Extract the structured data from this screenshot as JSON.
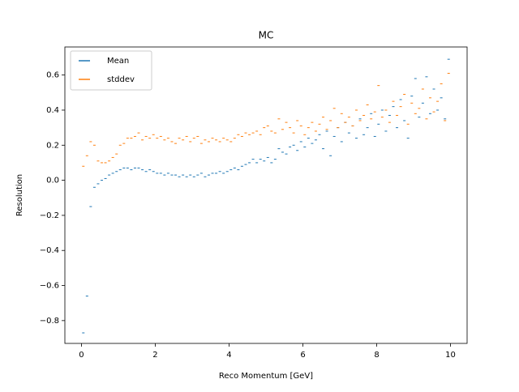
{
  "chart_data": {
    "type": "scatter",
    "title": "MC",
    "x_label": "Reco Momentum [GeV]",
    "y_label": "Resolution",
    "x": [
      0.05,
      0.15,
      0.25,
      0.35,
      0.45,
      0.55,
      0.65,
      0.75,
      0.85,
      0.95,
      1.05,
      1.15,
      1.25,
      1.35,
      1.45,
      1.55,
      1.65,
      1.75,
      1.85,
      1.95,
      2.05,
      2.15,
      2.25,
      2.35,
      2.45,
      2.55,
      2.65,
      2.75,
      2.85,
      2.95,
      3.05,
      3.15,
      3.25,
      3.35,
      3.45,
      3.55,
      3.65,
      3.75,
      3.85,
      3.95,
      4.05,
      4.15,
      4.25,
      4.35,
      4.45,
      4.55,
      4.65,
      4.75,
      4.85,
      4.95,
      5.05,
      5.15,
      5.25,
      5.35,
      5.45,
      5.55,
      5.65,
      5.75,
      5.85,
      5.95,
      6.05,
      6.15,
      6.25,
      6.35,
      6.45,
      6.55,
      6.65,
      6.75,
      6.85,
      6.95,
      7.05,
      7.15,
      7.25,
      7.35,
      7.45,
      7.55,
      7.65,
      7.75,
      7.85,
      7.95,
      8.05,
      8.15,
      8.25,
      8.35,
      8.45,
      8.55,
      8.65,
      8.75,
      8.85,
      8.95,
      9.05,
      9.15,
      9.25,
      9.35,
      9.45,
      9.55,
      9.65,
      9.75,
      9.85,
      9.95
    ],
    "series": [
      {
        "name": "Mean",
        "color": "#1f77b4",
        "values": [
          -0.87,
          -0.66,
          -0.15,
          -0.04,
          -0.02,
          0.0,
          0.01,
          0.03,
          0.04,
          0.05,
          0.06,
          0.07,
          0.07,
          0.06,
          0.07,
          0.07,
          0.06,
          0.05,
          0.06,
          0.05,
          0.04,
          0.04,
          0.03,
          0.04,
          0.03,
          0.03,
          0.02,
          0.03,
          0.02,
          0.03,
          0.02,
          0.03,
          0.04,
          0.02,
          0.03,
          0.04,
          0.04,
          0.05,
          0.04,
          0.05,
          0.06,
          0.07,
          0.06,
          0.08,
          0.09,
          0.1,
          0.12,
          0.1,
          0.12,
          0.11,
          0.13,
          0.1,
          0.12,
          0.18,
          0.16,
          0.15,
          0.19,
          0.2,
          0.17,
          0.22,
          0.19,
          0.24,
          0.21,
          0.23,
          0.26,
          0.18,
          0.28,
          0.14,
          0.25,
          0.3,
          0.22,
          0.33,
          0.27,
          0.31,
          0.24,
          0.35,
          0.26,
          0.3,
          0.38,
          0.25,
          0.32,
          0.4,
          0.28,
          0.37,
          0.42,
          0.3,
          0.46,
          0.34,
          0.24,
          0.48,
          0.58,
          0.36,
          0.44,
          0.59,
          0.38,
          0.52,
          0.4,
          0.47,
          0.35,
          0.69
        ]
      },
      {
        "name": "stddev",
        "color": "#ff7f0e",
        "values": [
          0.08,
          0.14,
          0.22,
          0.2,
          0.11,
          0.1,
          0.1,
          0.11,
          0.13,
          0.15,
          0.2,
          0.21,
          0.24,
          0.24,
          0.25,
          0.27,
          0.23,
          0.25,
          0.24,
          0.26,
          0.24,
          0.25,
          0.23,
          0.24,
          0.22,
          0.21,
          0.24,
          0.23,
          0.25,
          0.22,
          0.24,
          0.25,
          0.21,
          0.23,
          0.22,
          0.24,
          0.23,
          0.22,
          0.24,
          0.23,
          0.22,
          0.24,
          0.26,
          0.25,
          0.27,
          0.26,
          0.27,
          0.28,
          0.26,
          0.3,
          0.31,
          0.28,
          0.27,
          0.35,
          0.29,
          0.33,
          0.3,
          0.27,
          0.34,
          0.31,
          0.26,
          0.3,
          0.33,
          0.28,
          0.32,
          0.36,
          0.29,
          0.34,
          0.41,
          0.3,
          0.38,
          0.33,
          0.36,
          0.31,
          0.4,
          0.34,
          0.37,
          0.43,
          0.35,
          0.39,
          0.54,
          0.36,
          0.4,
          0.33,
          0.45,
          0.37,
          0.42,
          0.49,
          0.32,
          0.44,
          0.38,
          0.41,
          0.52,
          0.35,
          0.47,
          0.39,
          0.45,
          0.55,
          0.34,
          0.61
        ]
      }
    ],
    "xlim": [
      -0.45,
      10.45
    ],
    "ylim": [
      -0.93,
      0.76
    ],
    "xticks": [
      0,
      2,
      4,
      6,
      8,
      10
    ],
    "yticks": [
      {
        "value": -0.8,
        "label": "−0.8"
      },
      {
        "value": -0.6,
        "label": "−0.6"
      },
      {
        "value": -0.4,
        "label": "−0.4"
      },
      {
        "value": -0.2,
        "label": "−0.2"
      },
      {
        "value": 0,
        "label": "0.0"
      },
      0.2,
      0.4,
      0.6
    ],
    "grid": false,
    "legend": "upper left"
  }
}
